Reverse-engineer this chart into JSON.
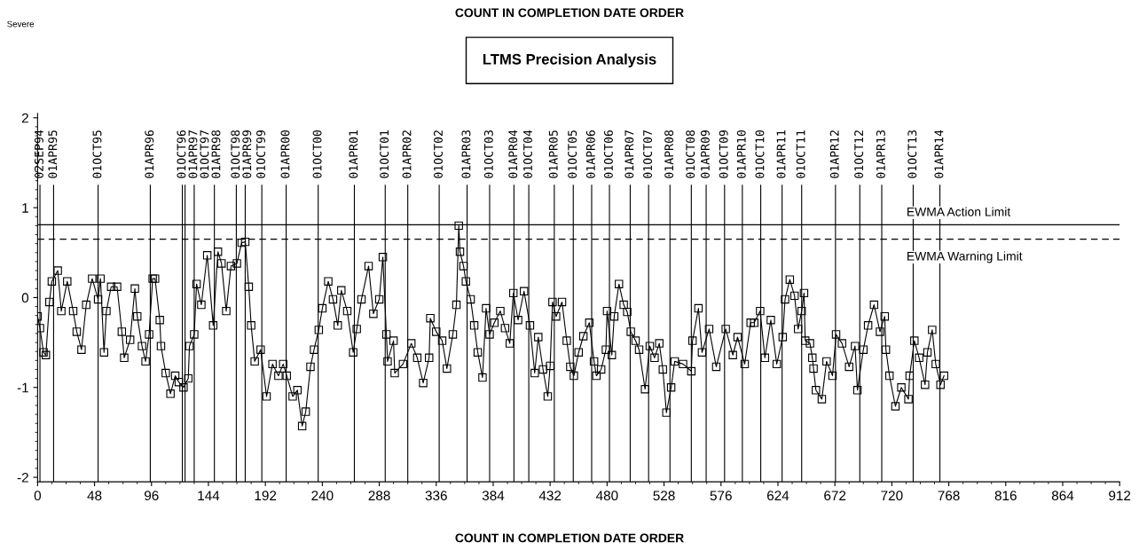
{
  "chart_data": {
    "type": "line",
    "title": "COUNT IN COMPLETION DATE ORDER",
    "subtitle": "LTMS Precision Analysis",
    "xlabel": "COUNT IN COMPLETION DATE ORDER",
    "annotations": [
      "Severe"
    ],
    "marker": "square",
    "line_style": "solid",
    "xlim": [
      0,
      912
    ],
    "ylim": [
      -2.05,
      2.05
    ],
    "xticks": [
      0,
      48,
      96,
      144,
      192,
      240,
      288,
      336,
      384,
      432,
      480,
      528,
      576,
      624,
      672,
      720,
      768,
      816,
      864,
      912
    ],
    "yticks": [
      -2,
      -1,
      0,
      1,
      2
    ],
    "series": [
      {
        "color": "#000000",
        "x": [
          0,
          2,
          5,
          7,
          10,
          12,
          17,
          20,
          25,
          30,
          33,
          37,
          41,
          46,
          51,
          53,
          56,
          58,
          62,
          67,
          71,
          73,
          78,
          82,
          84,
          88,
          91,
          94,
          97,
          99,
          103,
          104,
          108,
          112,
          116,
          119,
          123,
          127,
          128,
          132,
          134,
          138,
          143,
          148,
          152,
          155,
          159,
          163,
          168,
          172,
          175,
          178,
          180,
          183,
          188,
          193,
          198,
          203,
          207,
          210,
          215,
          219,
          223,
          226,
          230,
          233,
          237,
          240,
          245,
          249,
          253,
          256,
          261,
          266,
          269,
          273,
          279,
          283,
          288,
          291,
          294,
          295,
          300,
          301,
          308,
          315,
          320,
          325,
          330,
          331,
          336,
          341,
          345,
          350,
          353,
          355,
          356,
          359,
          361,
          365,
          368,
          371,
          375,
          378,
          381,
          385,
          390,
          394,
          398,
          401,
          405,
          410,
          415,
          419,
          422,
          426,
          430,
          432,
          434,
          437,
          442,
          446,
          449,
          452,
          456,
          460,
          465,
          469,
          471,
          475,
          479,
          480,
          484,
          486,
          490,
          494,
          497,
          500,
          504,
          507,
          512,
          516,
          520,
          524,
          527,
          530,
          534,
          537,
          544,
          551,
          552,
          557,
          560,
          566,
          572,
          580,
          586,
          590,
          596,
          601,
          604,
          609,
          613,
          618,
          623,
          628,
          630,
          634,
          638,
          641,
          644,
          646,
          647,
          651,
          653,
          654,
          656,
          661,
          665,
          670,
          673,
          678,
          684,
          689,
          691,
          696,
          700,
          705,
          710,
          714,
          715,
          718,
          723,
          728,
          734,
          735,
          739,
          743,
          748,
          750,
          754,
          757,
          761,
          764
        ],
        "values": [
          -0.21,
          -0.34,
          -0.61,
          -0.64,
          -0.05,
          0.18,
          0.3,
          -0.15,
          0.18,
          -0.15,
          -0.38,
          -0.58,
          -0.08,
          0.21,
          -0.02,
          0.21,
          -0.61,
          -0.15,
          0.12,
          0.12,
          -0.38,
          -0.67,
          -0.47,
          0.1,
          -0.21,
          -0.54,
          -0.71,
          -0.41,
          0.21,
          0.21,
          -0.25,
          -0.54,
          -0.84,
          -1.07,
          -0.87,
          -0.94,
          -1.0,
          -0.9,
          -0.54,
          -0.41,
          0.15,
          -0.08,
          0.47,
          -0.31,
          0.51,
          0.38,
          -0.15,
          0.35,
          0.38,
          0.61,
          0.62,
          0.12,
          -0.31,
          -0.71,
          -0.58,
          -1.1,
          -0.74,
          -0.87,
          -0.74,
          -0.87,
          -1.1,
          -1.03,
          -1.43,
          -1.27,
          -0.77,
          -0.58,
          -0.36,
          -0.12,
          0.18,
          -0.02,
          -0.31,
          0.08,
          -0.15,
          -0.61,
          -0.35,
          -0.02,
          0.35,
          -0.18,
          -0.02,
          0.45,
          -0.41,
          -0.71,
          -0.48,
          -0.84,
          -0.74,
          -0.51,
          -0.67,
          -0.95,
          -0.67,
          -0.23,
          -0.38,
          -0.48,
          -0.79,
          -0.41,
          -0.08,
          0.8,
          0.51,
          0.35,
          0.18,
          -0.02,
          -0.31,
          -0.61,
          -0.89,
          -0.12,
          -0.41,
          -0.28,
          -0.15,
          -0.34,
          -0.51,
          0.05,
          -0.25,
          0.07,
          -0.31,
          -0.84,
          -0.44,
          -0.8,
          -1.1,
          -0.76,
          -0.05,
          -0.21,
          -0.05,
          -0.48,
          -0.77,
          -0.87,
          -0.61,
          -0.43,
          -0.28,
          -0.71,
          -0.87,
          -0.8,
          -0.58,
          -0.15,
          -0.64,
          -0.21,
          0.15,
          -0.08,
          -0.16,
          -0.38,
          -0.48,
          -0.58,
          -1.02,
          -0.54,
          -0.67,
          -0.51,
          -0.8,
          -1.28,
          -1.0,
          -0.71,
          -0.74,
          -0.82,
          -0.48,
          -0.12,
          -0.61,
          -0.35,
          -0.77,
          -0.35,
          -0.64,
          -0.44,
          -0.74,
          -0.28,
          -0.28,
          -0.15,
          -0.67,
          -0.25,
          -0.74,
          -0.44,
          -0.02,
          0.2,
          0.02,
          -0.35,
          -0.15,
          0.05,
          -0.48,
          -0.51,
          -0.67,
          -0.79,
          -1.03,
          -1.13,
          -0.71,
          -0.87,
          -0.41,
          -0.51,
          -0.77,
          -0.54,
          -1.03,
          -0.58,
          -0.31,
          -0.08,
          -0.38,
          -0.21,
          -0.58,
          -0.87,
          -1.21,
          -1.0,
          -1.13,
          -0.87,
          -0.48,
          -0.67,
          -0.97,
          -0.61,
          -0.36,
          -0.74,
          -0.97,
          -0.87
        ]
      }
    ],
    "ref_lines": [
      {
        "axis": "y",
        "value": 0.81,
        "label": "EWMA Action Limit",
        "color": "#000000",
        "line_style": "solid"
      },
      {
        "axis": "y",
        "value": 0.65,
        "label": "EWMA Warning Limit",
        "color": "#000000",
        "line_style": "dashed"
      },
      {
        "axis": "x",
        "value": 2,
        "label": "02SEP94",
        "color": "#000000"
      },
      {
        "axis": "x",
        "value": 13.5,
        "label": "01APR95",
        "color": "#000000"
      },
      {
        "axis": "x",
        "value": 51,
        "label": "01OCT95",
        "color": "#000000"
      },
      {
        "axis": "x",
        "value": 95,
        "label": "01APR96",
        "color": "#000000"
      },
      {
        "axis": "x",
        "value": 122,
        "label": "01OCT96",
        "color": "#000000"
      },
      {
        "axis": "x",
        "value": 124.3,
        "label": "01APR97",
        "color": "#000000"
      },
      {
        "axis": "x",
        "value": 132,
        "label": "01OCT97",
        "color": "#000000"
      },
      {
        "axis": "x",
        "value": 149,
        "label": "01APR98",
        "color": "#000000"
      },
      {
        "axis": "x",
        "value": 167.5,
        "label": "01OCT98",
        "color": "#000000"
      },
      {
        "axis": "x",
        "value": 175,
        "label": "01APR99",
        "color": "#000000"
      },
      {
        "axis": "x",
        "value": 189,
        "label": "01OCT99",
        "color": "#000000"
      },
      {
        "axis": "x",
        "value": 209.5,
        "label": "01APR00",
        "color": "#000000"
      },
      {
        "axis": "x",
        "value": 236.5,
        "label": "01OCT00",
        "color": "#000000"
      },
      {
        "axis": "x",
        "value": 267,
        "label": "01APR01",
        "color": "#000000"
      },
      {
        "axis": "x",
        "value": 293,
        "label": "01OCT01",
        "color": "#000000"
      },
      {
        "axis": "x",
        "value": 312,
        "label": "01APR02",
        "color": "#000000"
      },
      {
        "axis": "x",
        "value": 338.5,
        "label": "01OCT02",
        "color": "#000000"
      },
      {
        "axis": "x",
        "value": 362,
        "label": "01APR03",
        "color": "#000000"
      },
      {
        "axis": "x",
        "value": 381,
        "label": "01OCT03",
        "color": "#000000"
      },
      {
        "axis": "x",
        "value": 401.5,
        "label": "01APR04",
        "color": "#000000"
      },
      {
        "axis": "x",
        "value": 414,
        "label": "01OCT04",
        "color": "#000000"
      },
      {
        "axis": "x",
        "value": 435.5,
        "label": "01APR05",
        "color": "#000000"
      },
      {
        "axis": "x",
        "value": 451.5,
        "label": "01OCT05",
        "color": "#000000"
      },
      {
        "axis": "x",
        "value": 467,
        "label": "01APR06",
        "color": "#000000"
      },
      {
        "axis": "x",
        "value": 482,
        "label": "01OCT06",
        "color": "#000000"
      },
      {
        "axis": "x",
        "value": 499.5,
        "label": "01APR07",
        "color": "#000000"
      },
      {
        "axis": "x",
        "value": 515,
        "label": "01OCT07",
        "color": "#000000"
      },
      {
        "axis": "x",
        "value": 533,
        "label": "01APR08",
        "color": "#000000"
      },
      {
        "axis": "x",
        "value": 551,
        "label": "01OCT08",
        "color": "#000000"
      },
      {
        "axis": "x",
        "value": 563.5,
        "label": "01APR09",
        "color": "#000000"
      },
      {
        "axis": "x",
        "value": 579,
        "label": "01OCT09",
        "color": "#000000"
      },
      {
        "axis": "x",
        "value": 594,
        "label": "01APR10",
        "color": "#000000"
      },
      {
        "axis": "x",
        "value": 609.5,
        "label": "01OCT10",
        "color": "#000000"
      },
      {
        "axis": "x",
        "value": 627.5,
        "label": "01APR11",
        "color": "#000000"
      },
      {
        "axis": "x",
        "value": 644,
        "label": "01OCT11",
        "color": "#000000"
      },
      {
        "axis": "x",
        "value": 672.5,
        "label": "01APR12",
        "color": "#000000"
      },
      {
        "axis": "x",
        "value": 693,
        "label": "01OCT12",
        "color": "#000000"
      },
      {
        "axis": "x",
        "value": 711.5,
        "label": "01APR13",
        "color": "#000000"
      },
      {
        "axis": "x",
        "value": 738,
        "label": "01OCT13",
        "color": "#000000"
      },
      {
        "axis": "x",
        "value": 760.5,
        "label": "01APR14",
        "color": "#000000"
      }
    ]
  }
}
